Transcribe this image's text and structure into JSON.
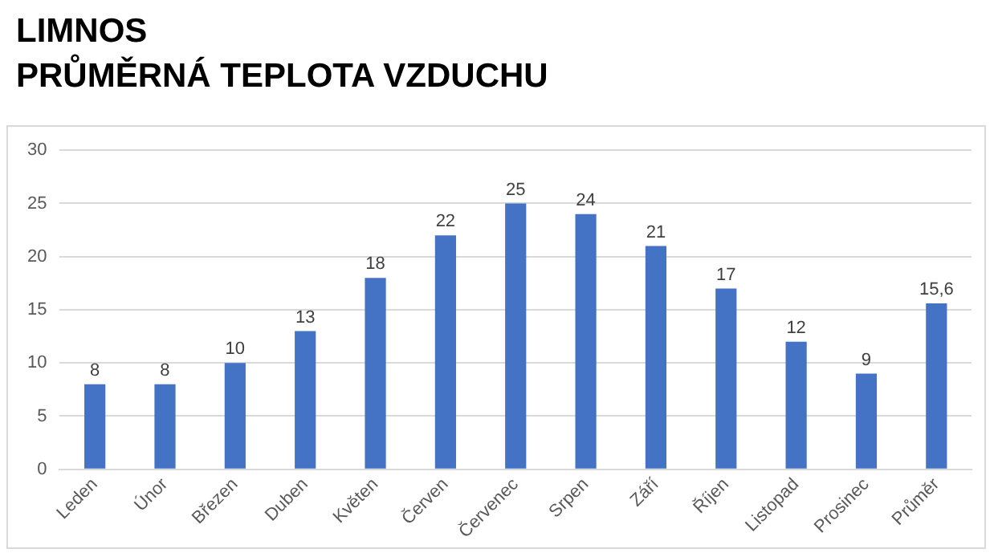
{
  "chart_data": {
    "type": "bar",
    "title": "LIMNOS",
    "subtitle": "PRŮMĚRNÁ TEPLOTA VZDUCHU",
    "categories": [
      "Leden",
      "Únor",
      "Březen",
      "Duben",
      "Květen",
      "Červen",
      "Červenec",
      "Srpen",
      "Září",
      "Říjen",
      "Listopad",
      "Prosinec",
      "Průměr"
    ],
    "values": [
      8,
      8,
      10,
      13,
      18,
      22,
      25,
      24,
      21,
      17,
      12,
      9,
      15.6
    ],
    "value_labels": [
      "8",
      "8",
      "10",
      "13",
      "18",
      "22",
      "25",
      "24",
      "21",
      "17",
      "12",
      "9",
      "15,6"
    ],
    "color": "#4472c4",
    "ylim": [
      0,
      30
    ],
    "yticks": [
      0,
      5,
      10,
      15,
      20,
      25,
      30
    ],
    "grid": "y"
  }
}
